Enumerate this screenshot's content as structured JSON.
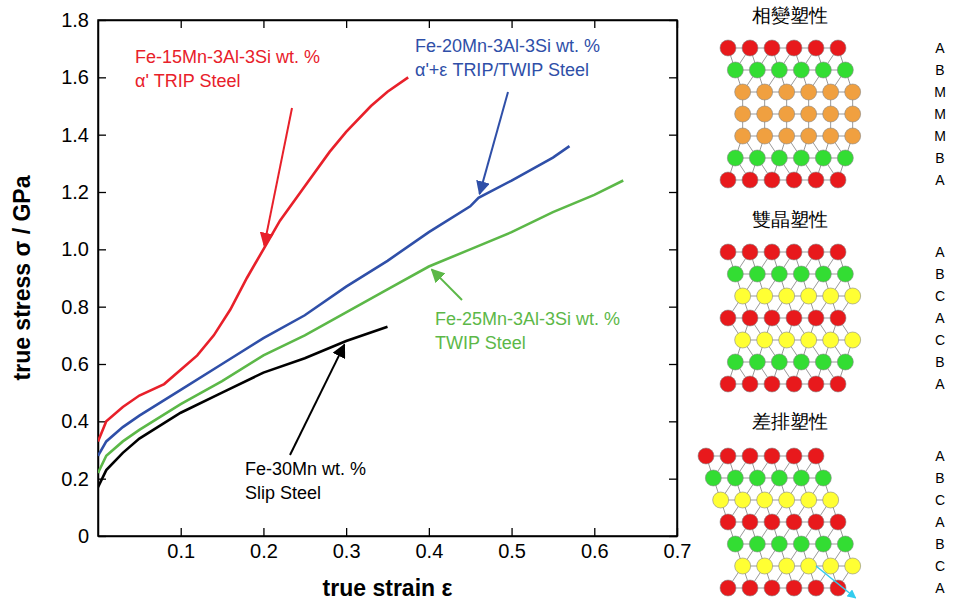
{
  "chart_data": {
    "type": "line",
    "x_label": "true strain ε",
    "y_label": "true stress σ / GPa",
    "xlim": [
      0,
      0.7
    ],
    "xticks": [
      0.1,
      0.2,
      0.3,
      0.4,
      0.5,
      0.6,
      0.7
    ],
    "ylim": [
      0,
      1.8
    ],
    "yticks": [
      0,
      0.2,
      0.4,
      0.6,
      0.8,
      {
        "value": 1,
        "label": "1.0"
      },
      1.2,
      1.4,
      1.6,
      1.8
    ],
    "series": [
      {
        "name": "Fe-15Mn-3Al-3Si wt. %\nα' TRIP Steel",
        "color": "#e8202a",
        "x": [
          0,
          0.01,
          0.03,
          0.05,
          0.08,
          0.1,
          0.12,
          0.14,
          0.16,
          0.18,
          0.2,
          0.22,
          0.25,
          0.28,
          0.3,
          0.33,
          0.35,
          0.375
        ],
        "values": [
          0.33,
          0.4,
          0.45,
          0.49,
          0.53,
          0.58,
          0.63,
          0.7,
          0.79,
          0.9,
          1.0,
          1.1,
          1.22,
          1.34,
          1.41,
          1.5,
          1.55,
          1.6
        ]
      },
      {
        "name": "Fe-20Mn-3Al-3Si wt. %\nα'+ε TRIP/TWIP Steel",
        "color": "#2f4fa8",
        "x": [
          0,
          0.01,
          0.03,
          0.05,
          0.1,
          0.15,
          0.2,
          0.25,
          0.3,
          0.35,
          0.4,
          0.45,
          0.46,
          0.5,
          0.55,
          0.57
        ],
        "values": [
          0.28,
          0.33,
          0.38,
          0.42,
          0.51,
          0.6,
          0.69,
          0.77,
          0.87,
          0.96,
          1.06,
          1.15,
          1.18,
          1.24,
          1.32,
          1.36
        ]
      },
      {
        "name": "Fe-25Mn-3Al-3Si wt. %\nTWIP Steel",
        "color": "#5cb848",
        "x": [
          0,
          0.01,
          0.03,
          0.05,
          0.1,
          0.15,
          0.2,
          0.25,
          0.3,
          0.35,
          0.4,
          0.45,
          0.5,
          0.55,
          0.6,
          0.635
        ],
        "values": [
          0.22,
          0.28,
          0.33,
          0.37,
          0.46,
          0.54,
          0.63,
          0.7,
          0.78,
          0.86,
          0.94,
          1.0,
          1.06,
          1.13,
          1.19,
          1.24
        ]
      },
      {
        "name": "Fe-30Mn wt. %\nSlip Steel",
        "color": "#000000",
        "x": [
          0,
          0.01,
          0.03,
          0.05,
          0.1,
          0.15,
          0.2,
          0.25,
          0.3,
          0.35
        ],
        "values": [
          0.17,
          0.23,
          0.29,
          0.34,
          0.43,
          0.5,
          0.57,
          0.62,
          0.68,
          0.73
        ]
      }
    ]
  },
  "diagrams": [
    {
      "title": "相變塑性",
      "layers": [
        {
          "label": "A",
          "color": "#e8191c"
        },
        {
          "label": "B",
          "color": "#33dd33"
        },
        {
          "label": "M",
          "color": "#f0a040"
        },
        {
          "label": "M",
          "color": "#f0a040"
        },
        {
          "label": "M",
          "color": "#f0a040"
        },
        {
          "label": "B",
          "color": "#33dd33"
        },
        {
          "label": "A",
          "color": "#e8191c"
        }
      ]
    },
    {
      "title": "雙晶塑性",
      "layers": [
        {
          "label": "A",
          "color": "#e8191c"
        },
        {
          "label": "B",
          "color": "#33dd33"
        },
        {
          "label": "C",
          "color": "#ffff33"
        },
        {
          "label": "A",
          "color": "#e8191c"
        },
        {
          "label": "C",
          "color": "#ffff33"
        },
        {
          "label": "B",
          "color": "#33dd33"
        },
        {
          "label": "A",
          "color": "#e8191c"
        }
      ]
    },
    {
      "title": "差排塑性",
      "layers": [
        {
          "label": "A",
          "color": "#e8191c"
        },
        {
          "label": "B",
          "color": "#33dd33"
        },
        {
          "label": "C",
          "color": "#ffff33"
        },
        {
          "label": "A",
          "color": "#e8191c"
        },
        {
          "label": "B",
          "color": "#33dd33"
        },
        {
          "label": "C",
          "color": "#ffff33"
        },
        {
          "label": "A",
          "color": "#e8191c"
        }
      ]
    }
  ]
}
